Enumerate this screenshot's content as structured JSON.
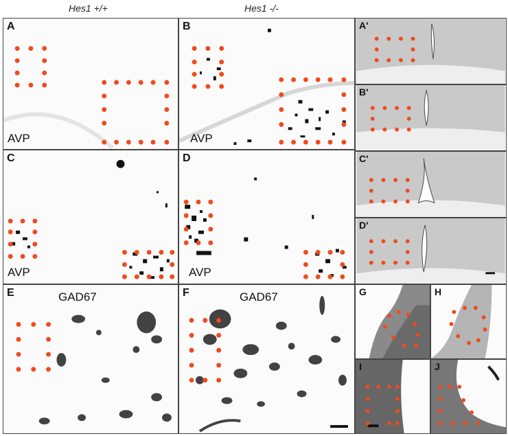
{
  "headers": {
    "wt": "Hes1 +/+",
    "ko": "Hes1 -/-"
  },
  "panels": {
    "A": {
      "label": "A",
      "stain": "AVP"
    },
    "B": {
      "label": "B",
      "stain": "AVP"
    },
    "C": {
      "label": "C",
      "stain": "AVP"
    },
    "D": {
      "label": "D",
      "stain": "AVP"
    },
    "E": {
      "label": "E",
      "stain": "GAD67"
    },
    "F": {
      "label": "F",
      "stain": "GAD67"
    },
    "A2": {
      "label": "A'"
    },
    "B2": {
      "label": "B'"
    },
    "C2": {
      "label": "C'"
    },
    "D2": {
      "label": "D'"
    },
    "G": {
      "label": "G"
    },
    "H": {
      "label": "H"
    },
    "I": {
      "label": "I"
    },
    "J": {
      "label": "J"
    }
  },
  "colors": {
    "marker": "#f04a1e",
    "stain": "#111111",
    "background": "#fbfbfb"
  }
}
